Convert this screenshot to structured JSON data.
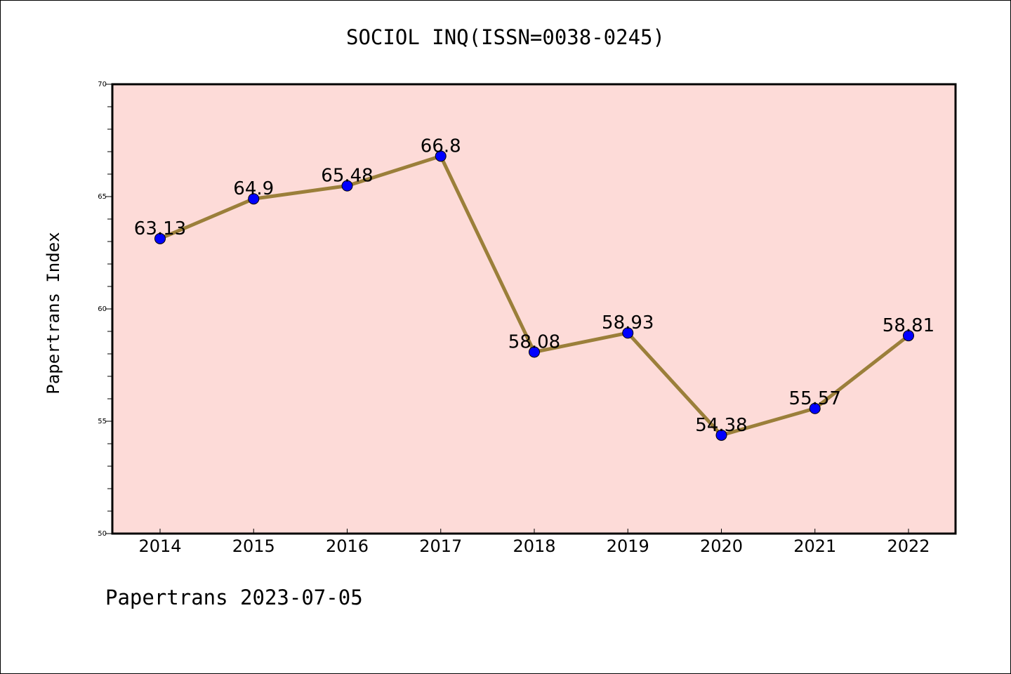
{
  "chart_data": {
    "type": "line",
    "title": "SOCIOL INQ(ISSN=0038-0245)",
    "ylabel": "Papertrans Index",
    "xlabel": "",
    "footer": "Papertrans 2023-07-05",
    "categories": [
      "2014",
      "2015",
      "2016",
      "2017",
      "2018",
      "2019",
      "2020",
      "2021",
      "2022"
    ],
    "values": [
      63.13,
      64.9,
      65.48,
      66.8,
      58.08,
      58.93,
      54.38,
      55.57,
      58.81
    ],
    "data_labels": [
      "63.13",
      "64.9",
      "65.48",
      "66.8",
      "58.08",
      "58.93",
      "54.38",
      "55.57",
      "58.81"
    ],
    "ylim": [
      50,
      70
    ],
    "yticks": [
      50,
      55,
      60,
      65,
      70
    ],
    "grid": false,
    "colors": {
      "plot_background": "#fddbd8",
      "line": "#9b7f3a",
      "marker": "#0000ff",
      "axes": "#000000"
    }
  }
}
